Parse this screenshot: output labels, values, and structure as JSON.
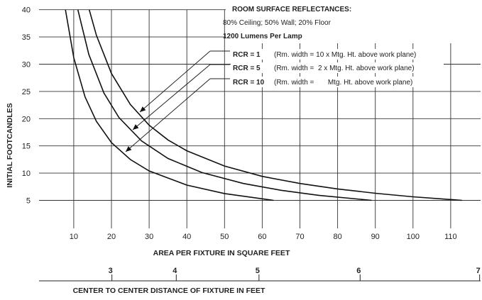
{
  "chart_data": {
    "type": "line",
    "ylabel": "INITIAL FOOTCANDLES",
    "xlabel": "AREA PER FIXTURE IN SQUARE FEET",
    "x2label": "CENTER TO CENTER DISTANCE OF FIXTURE IN FEET",
    "xlim": [
      0,
      120
    ],
    "ylim": [
      0,
      40
    ],
    "xticks": [
      10,
      20,
      30,
      40,
      50,
      60,
      70,
      80,
      90,
      100,
      110
    ],
    "yticks": [
      5,
      10,
      15,
      20,
      25,
      30,
      35,
      40
    ],
    "x2ticks": [
      3,
      4,
      5,
      6,
      7,
      8,
      9,
      10
    ],
    "grid": true,
    "notes": {
      "heading": "ROOM SURFACE REFLECTANCES:",
      "reflectances": "80% Ceiling; 50% Wall; 20% Floor",
      "lumens": "1200 Lumens Per Lamp"
    },
    "series": [
      {
        "name": "RCR = 1",
        "desc": "(Rm. width = 10 x Mtg. Ht. above work plane)",
        "x": [
          14.1,
          16,
          20,
          25,
          30,
          35,
          40,
          50,
          60,
          70,
          80,
          90,
          100,
          113
        ],
        "y": [
          40,
          35.3,
          28.3,
          22.6,
          18.8,
          16.1,
          14.1,
          11.3,
          9.4,
          8.1,
          7.1,
          6.3,
          5.65,
          5
        ]
      },
      {
        "name": "RCR = 5",
        "desc": "(Rm. width =  2 x Mtg. Ht. above work plane)",
        "x": [
          11.1,
          14,
          18,
          22,
          28,
          35,
          44,
          55,
          65,
          75,
          89
        ],
        "y": [
          40,
          31.8,
          24.7,
          20.2,
          15.9,
          12.7,
          10.1,
          8.1,
          6.85,
          5.93,
          5
        ]
      },
      {
        "name": "RCR = 10",
        "desc": "(Rm. width =       Mtg. Ht. above work plane)",
        "x": [
          7.8,
          10,
          13,
          16,
          20,
          25,
          30,
          40,
          50,
          63
        ],
        "y": [
          40,
          31.2,
          24,
          19.5,
          15.6,
          12.5,
          10.4,
          7.8,
          6.25,
          5
        ]
      }
    ]
  }
}
